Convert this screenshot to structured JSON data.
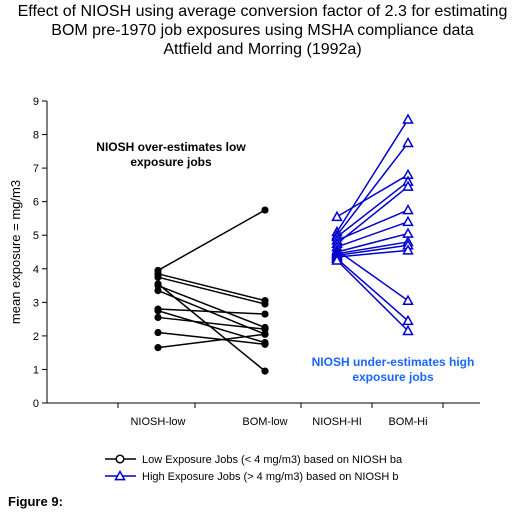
{
  "figure_label": "Figure 9:",
  "chart_data": {
    "type": "line",
    "title_lines": [
      "Effect of NIOSH using average conversion factor of 2.3 for estimating",
      "BOM pre-1970 job exposures using MSHA compliance data",
      "Attfield and Morring (1992a)"
    ],
    "xlabel": "",
    "ylabel": "mean exposure = mg/m3",
    "ylim": [
      0,
      9
    ],
    "yticks": [
      "0",
      "1",
      "2",
      "3",
      "4",
      "5",
      "6",
      "7",
      "8",
      "9"
    ],
    "categories": [
      "NIOSH-low",
      "BOM-low",
      "NIOSH-HI",
      "BOM-Hi"
    ],
    "grid": false,
    "legend_position": "bottom",
    "legend": [
      {
        "label": "Low Exposure Jobs (< 4 mg/m3) based on NIOSH ba",
        "color": "#000000",
        "marker": "circle"
      },
      {
        "label": "High Exposure Jobs (> 4 mg/m3) based on NIOSH b",
        "color": "#0000cc",
        "marker": "triangle"
      }
    ],
    "annotations": [
      {
        "text_lines": [
          "NIOSH over-estimates low",
          "exposure jobs"
        ],
        "color": "#000000"
      },
      {
        "text_lines": [
          "NIOSH under-estimates high",
          "exposure jobs"
        ],
        "color": "#1a66ff"
      }
    ],
    "low_pairs": [
      [
        3.95,
        5.75
      ],
      [
        3.85,
        3.05
      ],
      [
        3.75,
        2.95
      ],
      [
        3.5,
        2.25
      ],
      [
        3.35,
        2.05
      ],
      [
        2.8,
        2.65
      ],
      [
        2.75,
        1.8
      ],
      [
        2.55,
        2.2
      ],
      [
        2.1,
        1.75
      ],
      [
        1.65,
        2.05
      ],
      [
        3.55,
        0.95
      ]
    ],
    "high_pairs": [
      [
        5.55,
        6.8
      ],
      [
        5.1,
        8.45
      ],
      [
        5.0,
        7.75
      ],
      [
        4.95,
        6.6
      ],
      [
        4.85,
        5.75
      ],
      [
        4.75,
        6.45
      ],
      [
        4.65,
        5.4
      ],
      [
        4.55,
        3.05
      ],
      [
        4.5,
        5.05
      ],
      [
        4.45,
        4.8
      ],
      [
        4.4,
        4.7
      ],
      [
        4.35,
        4.55
      ],
      [
        4.3,
        2.45
      ],
      [
        4.25,
        2.15
      ]
    ]
  }
}
